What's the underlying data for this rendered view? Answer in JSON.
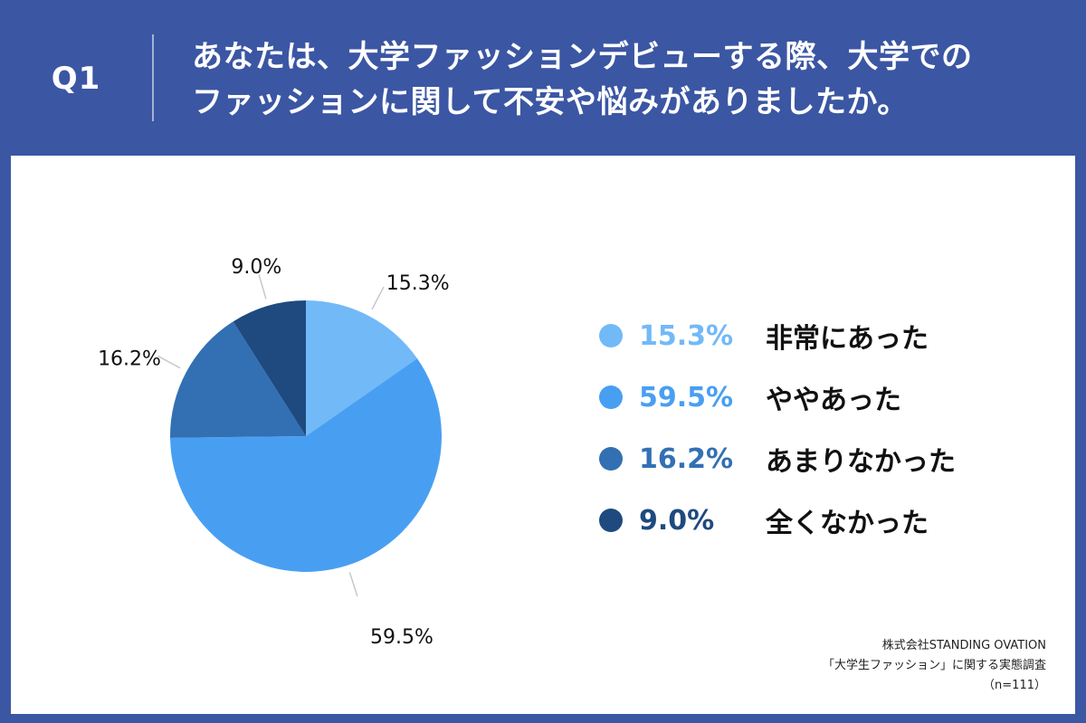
{
  "question": {
    "label": "Q1",
    "line1": "あなたは、大学ファッションデビューする際、大学での",
    "line2": "ファッションに関して不安や悩みがありましたか。"
  },
  "chart_data": {
    "type": "pie",
    "start_angle": "12 o'clock",
    "direction": "clockwise",
    "slices": [
      {
        "label": "非常にあった",
        "value": 15.3,
        "display": "15.3%",
        "color": "#72b9f8"
      },
      {
        "label": "ややあった",
        "value": 59.5,
        "display": "59.5%",
        "color": "#489ff2"
      },
      {
        "label": "あまりなかった",
        "value": 16.2,
        "display": "16.2%",
        "color": "#3270b3"
      },
      {
        "label": "全くなかった",
        "value": 9.0,
        "display": "9.0%",
        "color": "#1e4a7f"
      }
    ],
    "legend_position": "right"
  },
  "source": {
    "company": "株式会社STANDING OVATION",
    "survey": "「大学生ファッション」に関する実態調査",
    "sample": "（n=111）"
  }
}
